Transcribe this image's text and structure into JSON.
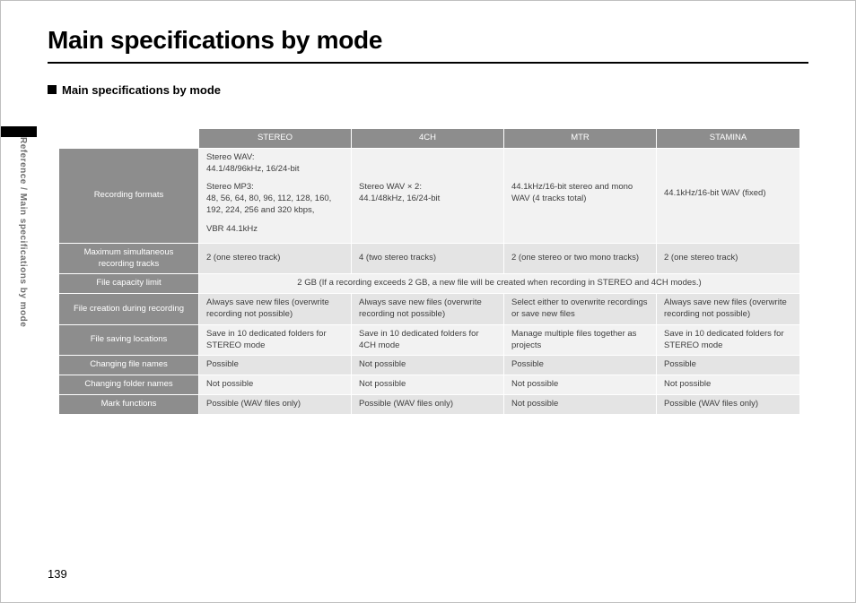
{
  "breadcrumb": "Reference / Main specifications by mode",
  "page_number": "139",
  "title": "Main specifications by mode",
  "subtitle": "Main specifications by mode",
  "colors": {
    "header_bg": "#8d8d8d",
    "header_fg": "#ffffff",
    "cell_bg": "#f2f2f2",
    "cell_bg_alt": "#e4e4e4",
    "cell_fg": "#3d3d3d",
    "rule": "#000000"
  },
  "table": {
    "columns": [
      "STEREO",
      "4CH",
      "MTR",
      "STAMINA"
    ],
    "rows": [
      {
        "label": "Recording formats",
        "type": "multiline",
        "cells": [
          [
            "Stereo WAV:\n44.1/48/96kHz, 16/24-bit",
            "Stereo MP3:\n48, 56, 64, 80, 96, 112, 128, 160, 192, 224, 256 and 320 kbps,",
            "VBR 44.1kHz"
          ],
          [
            "Stereo WAV × 2:\n44.1/48kHz, 16/24-bit"
          ],
          [
            "44.1kHz/16-bit stereo and mono WAV (4 tracks total)"
          ],
          [
            "44.1kHz/16-bit WAV (fixed)"
          ]
        ]
      },
      {
        "label": "Maximum simultaneous recording tracks",
        "cells": [
          "2 (one stereo track)",
          "4 (two stereo tracks)",
          "2 (one stereo or two mono tracks)",
          "2 (one stereo track)"
        ]
      },
      {
        "label": "File capacity limit",
        "span": true,
        "spantext": "2 GB (If a recording exceeds 2 GB, a new file will be created when recording in STEREO and 4CH modes.)"
      },
      {
        "label": "File creation during recording",
        "cells": [
          "Always save new files (overwrite recording not possible)",
          "Always save new files (overwrite recording not possible)",
          "Select either to overwrite recordings or save new files",
          "Always save new files (overwrite recording not possible)"
        ]
      },
      {
        "label": "File saving locations",
        "cells": [
          "Save in 10 dedicated folders for STEREO mode",
          "Save in 10 dedicated folders for 4CH mode",
          "Manage multiple files together as projects",
          "Save in 10 dedicated folders for STEREO mode"
        ]
      },
      {
        "label": "Changing file names",
        "cells": [
          "Possible",
          "Not possible",
          "Possible",
          "Possible"
        ]
      },
      {
        "label": "Changing folder names",
        "cells": [
          "Not possible",
          "Not possible",
          "Not possible",
          "Not possible"
        ]
      },
      {
        "label": "Mark functions",
        "cells": [
          "Possible (WAV files only)",
          "Possible (WAV files only)",
          "Not possible",
          "Possible (WAV files only)"
        ]
      }
    ]
  }
}
